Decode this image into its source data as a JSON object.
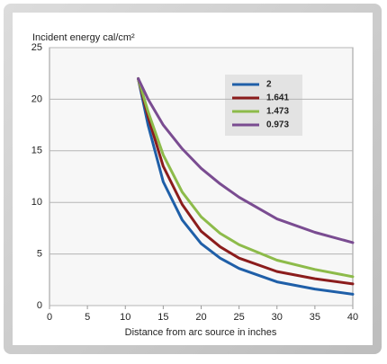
{
  "chart_data": {
    "type": "line",
    "y_label": "Incident energy cal/cm²",
    "x_label": "Distance from arc source in inches",
    "x": [
      11.7,
      13,
      15,
      17.5,
      20,
      22.5,
      25,
      30,
      35,
      40
    ],
    "series": [
      {
        "name": "2",
        "color": "#1f5fa8",
        "values": [
          22,
          17.5,
          12,
          8.3,
          6,
          4.6,
          3.6,
          2.3,
          1.6,
          1.1
        ]
      },
      {
        "name": "1.641",
        "color": "#8b1c1c",
        "values": [
          22,
          18.3,
          13.5,
          9.8,
          7.2,
          5.7,
          4.6,
          3.3,
          2.6,
          2.1
        ]
      },
      {
        "name": "1.473",
        "color": "#8dbb4a",
        "values": [
          22,
          18.8,
          14.6,
          11,
          8.6,
          7,
          5.9,
          4.4,
          3.5,
          2.8
        ]
      },
      {
        "name": "0.973",
        "color": "#7a4c91",
        "values": [
          22,
          20,
          17.5,
          15.2,
          13.3,
          11.8,
          10.5,
          8.4,
          7.1,
          6.1
        ]
      }
    ],
    "xlim": [
      0,
      40
    ],
    "xticks": [
      0,
      5,
      10,
      15,
      20,
      25,
      30,
      35,
      40
    ],
    "ylim": [
      0,
      25
    ],
    "yticks": [
      0,
      5,
      10,
      15,
      20,
      25
    ],
    "grid": true
  }
}
